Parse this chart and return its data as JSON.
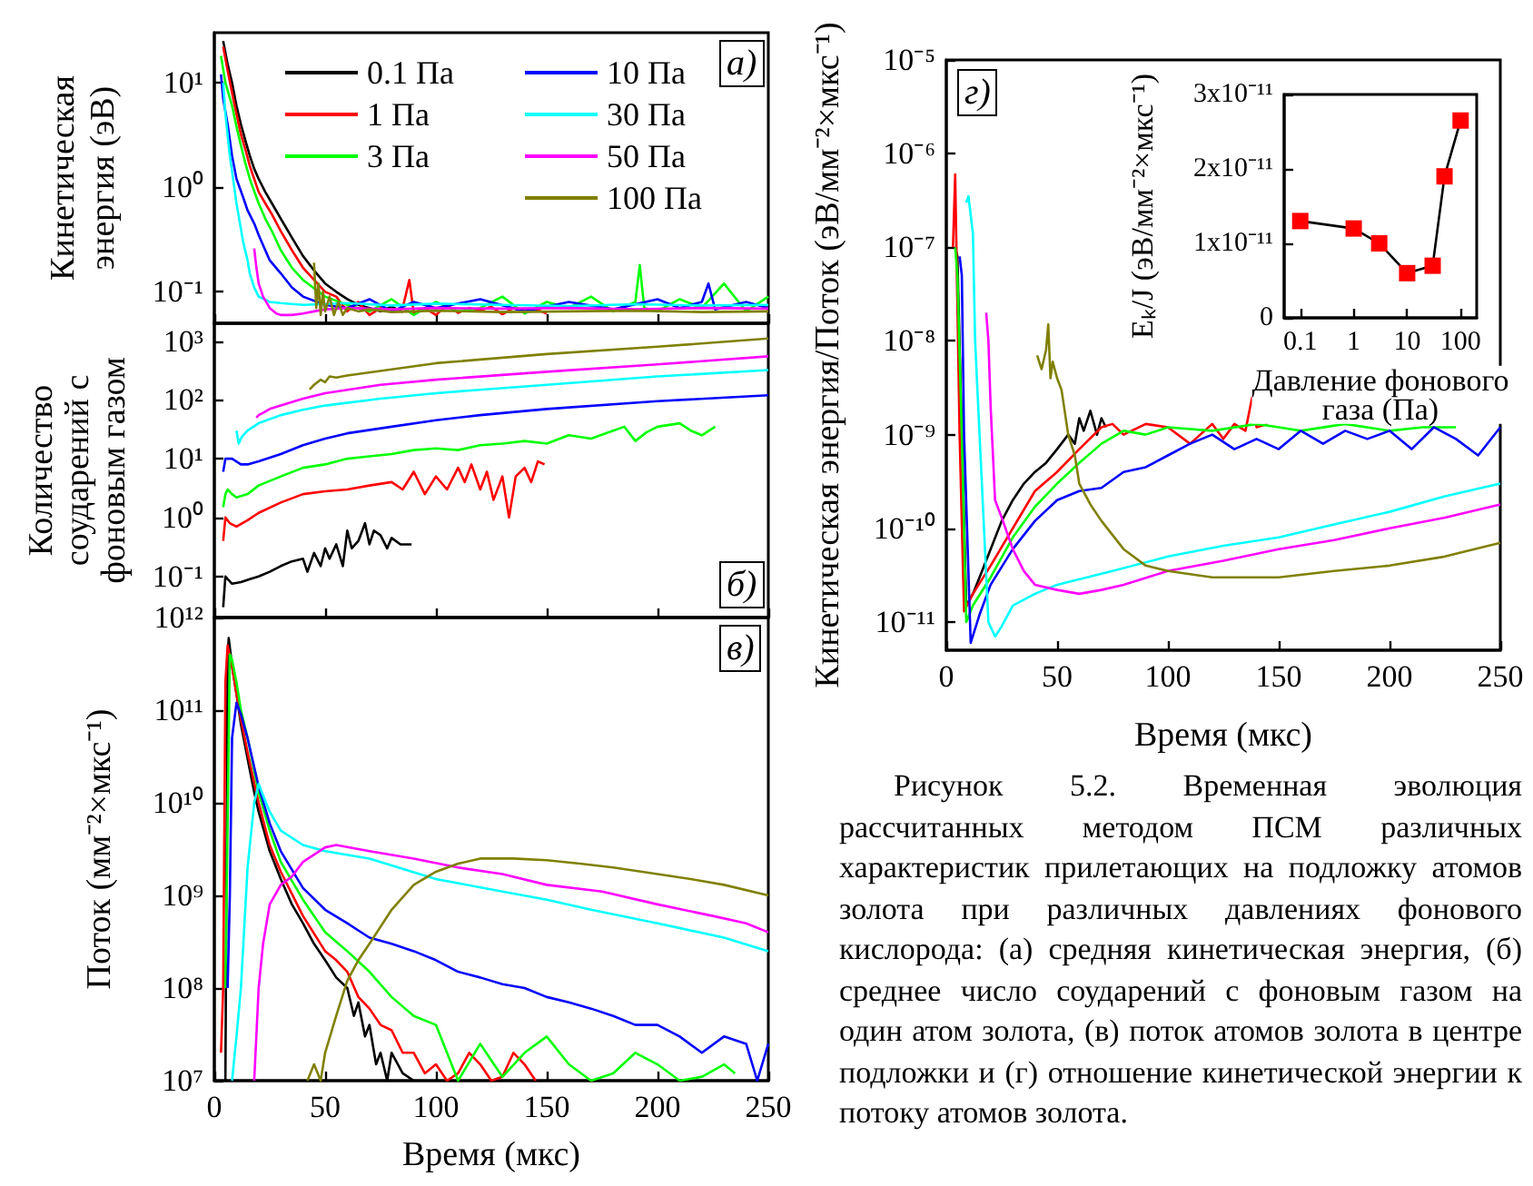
{
  "chart_data": [
    {
      "type": "line",
      "ylabel": "Кинетическая энергия (эВ)",
      "log": true,
      "tick_labels": "y",
      "legend": "top right",
      "xlim": [
        0,
        250
      ],
      "xticks": [
        0,
        50,
        100,
        150,
        200,
        250
      ],
      "ylim": [
        0.05,
        30
      ],
      "yticks": [
        {
          "value": 0.1,
          "label": "10⁻¹"
        },
        {
          "value": 1,
          "label": "10⁰"
        },
        {
          "value": 10,
          "label": "10¹"
        }
      ],
      "annotations": [
        "а)"
      ],
      "series": [
        {
          "name": "0.1 Па",
          "color": "#000000",
          "x": [
            4,
            6,
            8,
            10,
            12,
            14,
            16,
            18,
            20,
            23,
            26,
            30,
            35,
            40,
            45,
            50,
            55,
            60,
            65,
            70,
            75,
            80,
            85
          ],
          "values": [
            25,
            15,
            10,
            6,
            4,
            2.8,
            2,
            1.5,
            1.2,
            0.9,
            0.7,
            0.5,
            0.33,
            0.22,
            0.16,
            0.12,
            0.1,
            0.085,
            0.075,
            0.07,
            0.065,
            0.072,
            0.064
          ]
        },
        {
          "name": "1 Па",
          "color": "#ff0000",
          "x": [
            4,
            6,
            8,
            10,
            12,
            14,
            16,
            18,
            20,
            23,
            26,
            30,
            35,
            40,
            45,
            50,
            55,
            60,
            65,
            70,
            75,
            80,
            85,
            88,
            90,
            95,
            100,
            105,
            110,
            115,
            120,
            125,
            130,
            135,
            140,
            145,
            150
          ],
          "values": [
            22,
            13,
            8,
            5,
            3.2,
            2.3,
            1.6,
            1.2,
            0.9,
            0.7,
            0.55,
            0.38,
            0.25,
            0.17,
            0.13,
            0.1,
            0.09,
            0.065,
            0.08,
            0.06,
            0.07,
            0.065,
            0.07,
            0.13,
            0.062,
            0.07,
            0.06,
            0.075,
            0.063,
            0.07,
            0.066,
            0.072,
            0.061,
            0.07,
            0.065,
            0.068,
            0.062
          ]
        },
        {
          "name": "3 Па",
          "color": "#00ff00",
          "x": [
            3,
            5,
            8,
            10,
            12,
            14,
            16,
            20,
            23,
            26,
            30,
            35,
            40,
            50,
            60,
            70,
            80,
            90,
            100,
            110,
            120,
            130,
            140,
            150,
            160,
            170,
            180,
            190,
            192,
            194,
            200,
            210,
            220,
            230,
            240,
            250
          ],
          "values": [
            18,
            10,
            6,
            3.8,
            2.5,
            1.7,
            1.2,
            0.7,
            0.5,
            0.38,
            0.25,
            0.17,
            0.13,
            0.09,
            0.075,
            0.065,
            0.085,
            0.06,
            0.08,
            0.065,
            0.07,
            0.09,
            0.062,
            0.08,
            0.07,
            0.09,
            0.065,
            0.08,
            0.18,
            0.07,
            0.065,
            0.085,
            0.07,
            0.12,
            0.065,
            0.09
          ]
        },
        {
          "name": "10 Па",
          "color": "#0000ff",
          "x": [
            3,
            4,
            6,
            8,
            10,
            13,
            15,
            18,
            20,
            25,
            30,
            35,
            40,
            50,
            60,
            70,
            80,
            90,
            100,
            120,
            140,
            160,
            180,
            200,
            210,
            220,
            223,
            226,
            240,
            250
          ],
          "values": [
            12,
            7,
            4,
            2,
            1.2,
            0.8,
            0.6,
            0.45,
            0.35,
            0.2,
            0.15,
            0.11,
            0.09,
            0.075,
            0.07,
            0.085,
            0.065,
            0.08,
            0.07,
            0.085,
            0.065,
            0.08,
            0.068,
            0.085,
            0.07,
            0.08,
            0.12,
            0.068,
            0.08,
            0.07
          ]
        },
        {
          "name": "30 Па",
          "color": "#00ffff",
          "x": [
            4,
            5,
            7,
            9,
            10,
            12,
            13,
            15,
            16,
            18,
            20,
            25,
            30,
            40,
            60,
            80,
            100,
            130,
            160,
            190,
            220,
            250
          ],
          "values": [
            10,
            5,
            2,
            1,
            0.7,
            0.4,
            0.3,
            0.2,
            0.15,
            0.11,
            0.09,
            0.08,
            0.078,
            0.075,
            0.078,
            0.074,
            0.077,
            0.075,
            0.073,
            0.076,
            0.074,
            0.075
          ]
        },
        {
          "name": "50 Па",
          "color": "#ff00ff",
          "x": [
            18,
            19,
            20,
            22,
            25,
            28,
            30,
            35,
            40,
            45,
            50,
            60,
            80,
            100,
            130,
            160,
            190,
            220,
            250
          ],
          "values": [
            0.26,
            0.17,
            0.12,
            0.09,
            0.07,
            0.062,
            0.06,
            0.06,
            0.062,
            0.065,
            0.068,
            0.07,
            0.068,
            0.07,
            0.069,
            0.07,
            0.068,
            0.07,
            0.069
          ]
        },
        {
          "name": "100 Па",
          "color": "#808000",
          "x": [
            45,
            46,
            47,
            48,
            49,
            50,
            52,
            54,
            56,
            58,
            60,
            65,
            70,
            80,
            100,
            130,
            160,
            190,
            220,
            250
          ],
          "values": [
            0.19,
            0.07,
            0.12,
            0.06,
            0.1,
            0.065,
            0.09,
            0.06,
            0.08,
            0.06,
            0.07,
            0.065,
            0.068,
            0.064,
            0.066,
            0.064,
            0.065,
            0.066,
            0.064,
            0.065
          ]
        }
      ]
    },
    {
      "type": "line",
      "ylabel": "Количество соударений с фоновым газом",
      "log": true,
      "tick_labels": "y",
      "xlim": [
        0,
        250
      ],
      "xticks": [
        0,
        50,
        100,
        150,
        200,
        250
      ],
      "ylim": [
        0.02,
        2000
      ],
      "yticks": [
        {
          "value": 0.1,
          "label": "10⁻¹"
        },
        {
          "value": 1,
          "label": "10⁰"
        },
        {
          "value": 10,
          "label": "10¹"
        },
        {
          "value": 100,
          "label": "10²"
        },
        {
          "value": 1000,
          "label": "10³"
        }
      ],
      "annotations": [
        "б)"
      ],
      "series": [
        {
          "color": "#000000",
          "x": [
            4,
            5,
            6,
            8,
            12,
            16,
            20,
            25,
            30,
            35,
            40,
            42,
            45,
            48,
            50,
            52,
            55,
            58,
            60,
            62,
            65,
            68,
            70,
            72,
            75,
            78,
            80,
            84,
            89
          ],
          "values": [
            0.03,
            0.1,
            0.09,
            0.075,
            0.08,
            0.09,
            0.1,
            0.12,
            0.15,
            0.18,
            0.2,
            0.12,
            0.25,
            0.15,
            0.3,
            0.2,
            0.35,
            0.15,
            0.6,
            0.3,
            0.4,
            0.8,
            0.35,
            0.6,
            0.5,
            0.3,
            0.45,
            0.35,
            0.35
          ]
        },
        {
          "color": "#ff0000",
          "x": [
            4,
            5,
            7,
            10,
            15,
            20,
            30,
            40,
            50,
            60,
            70,
            80,
            85,
            90,
            95,
            100,
            105,
            110,
            113,
            116,
            120,
            123,
            126,
            130,
            133,
            136,
            140,
            143,
            146,
            149
          ],
          "values": [
            0.4,
            1,
            0.8,
            0.7,
            0.9,
            1.2,
            1.8,
            2.5,
            2.8,
            3,
            3.5,
            4,
            3,
            6,
            2.5,
            5,
            3,
            7,
            4,
            8,
            3,
            6,
            2,
            5,
            1,
            5,
            7,
            4,
            9,
            8
          ]
        },
        {
          "color": "#00ff00",
          "x": [
            4,
            5,
            6,
            8,
            10,
            15,
            20,
            30,
            40,
            50,
            60,
            70,
            80,
            90,
            100,
            110,
            120,
            130,
            140,
            150,
            160,
            170,
            180,
            185,
            190,
            195,
            200,
            210,
            215,
            220,
            226
          ],
          "values": [
            1.5,
            2.5,
            3,
            2.5,
            2.2,
            2.5,
            3.5,
            5,
            7,
            8,
            10,
            11,
            12,
            14,
            15,
            14,
            17,
            18,
            20,
            18,
            25,
            22,
            30,
            35,
            20,
            28,
            35,
            40,
            30,
            25,
            35
          ]
        },
        {
          "color": "#0000ff",
          "x": [
            4,
            5,
            8,
            12,
            15,
            20,
            30,
            40,
            50,
            60,
            80,
            100,
            120,
            150,
            200,
            250
          ],
          "values": [
            6,
            10,
            10,
            8,
            8,
            9,
            12,
            17,
            22,
            27,
            35,
            45,
            55,
            70,
            95,
            120
          ]
        },
        {
          "color": "#00ffff",
          "x": [
            10,
            11,
            12,
            13,
            15,
            20,
            30,
            40,
            50,
            75,
            100,
            150,
            200,
            250
          ],
          "values": [
            30,
            18,
            22,
            25,
            30,
            40,
            55,
            68,
            80,
            105,
            130,
            180,
            250,
            320
          ]
        },
        {
          "color": "#ff00ff",
          "x": [
            19,
            20,
            22,
            25,
            30,
            40,
            50,
            75,
            100,
            150,
            200,
            250
          ],
          "values": [
            50,
            55,
            60,
            70,
            80,
            105,
            130,
            180,
            220,
            300,
            400,
            550
          ]
        },
        {
          "color": "#808000",
          "x": [
            43,
            45,
            48,
            50,
            52,
            55,
            60,
            80,
            100,
            150,
            200,
            250
          ],
          "values": [
            150,
            180,
            220,
            200,
            250,
            240,
            260,
            330,
            420,
            600,
            800,
            1100
          ]
        }
      ]
    },
    {
      "type": "line",
      "xlabel": "Время (мкс)",
      "ylabel": "Поток (мм⁻²×мкс⁻¹)",
      "log": true,
      "xlim": [
        0,
        250
      ],
      "xticks": [
        0,
        50,
        100,
        150,
        200,
        250
      ],
      "ylim": [
        10000000.0,
        1000000000000.0
      ],
      "yticks": [
        {
          "value": 10000000.0,
          "label": "10⁷"
        },
        {
          "value": 100000000.0,
          "label": "10⁸"
        },
        {
          "value": 1000000000.0,
          "label": "10⁹"
        },
        {
          "value": 10000000000.0,
          "label": "10¹⁰"
        },
        {
          "value": 100000000000.0,
          "label": "10¹¹"
        },
        {
          "value": 1000000000000.0,
          "label": "10¹²"
        }
      ],
      "annotations": [
        "в)"
      ],
      "series": [
        {
          "color": "#000000",
          "x": [
            5,
            6,
            6.5,
            8,
            10,
            12,
            15,
            18,
            20,
            25,
            30,
            35,
            40,
            45,
            50,
            55,
            60,
            63,
            65,
            68,
            70,
            73,
            75,
            78,
            80,
            85,
            90
          ],
          "values": [
            10000000.0,
            400000000000.0,
            600000000000.0,
            300000000000.0,
            150000000000.0,
            70000000000.0,
            30000000000.0,
            13000000000.0,
            8000000000.0,
            3000000000.0,
            1500000000.0,
            800000000.0,
            500000000.0,
            300000000.0,
            200000000.0,
            130000000.0,
            100000000.0,
            50000000.0,
            70000000.0,
            30000000.0,
            40000000.0,
            15000000.0,
            20000000.0,
            10000000.0,
            20000000.0,
            12000000.0,
            10000000.0
          ]
        },
        {
          "color": "#ff0000",
          "x": [
            3,
            4,
            5,
            6,
            8,
            10,
            12,
            15,
            20,
            25,
            30,
            40,
            50,
            55,
            60,
            65,
            70,
            75,
            80,
            85,
            90,
            95,
            100,
            105,
            110,
            115,
            120,
            125,
            130,
            135,
            140,
            145
          ],
          "values": [
            20000000.0,
            100000000.0,
            200000000000.0,
            500000000000.0,
            300000000000.0,
            150000000000.0,
            80000000000.0,
            35000000000.0,
            10000000000.0,
            3500000000.0,
            1800000000.0,
            600000000.0,
            250000000.0,
            200000000.0,
            150000000.0,
            80000000.0,
            60000000.0,
            40000000.0,
            35000000.0,
            20000000.0,
            20000000.0,
            12000000.0,
            15000000.0,
            10000000.0,
            12000000.0,
            20000000.0,
            15000000.0,
            10000000.0,
            11000000.0,
            20000000.0,
            15000000.0,
            10000000.0
          ]
        },
        {
          "color": "#00ff00",
          "x": [
            5,
            7,
            8,
            10,
            12,
            15,
            20,
            25,
            30,
            40,
            50,
            60,
            70,
            80,
            90,
            100,
            110,
            120,
            130,
            140,
            150,
            160,
            170,
            180,
            190,
            200,
            210,
            220,
            230,
            235
          ],
          "values": [
            100000000.0,
            400000000000.0,
            350000000000.0,
            200000000000.0,
            100000000000.0,
            50000000000.0,
            13000000000.0,
            5000000000.0,
            2300000000.0,
            900000000.0,
            400000000.0,
            250000000.0,
            150000000.0,
            80000000.0,
            50000000.0,
            40000000.0,
            10000000.0,
            25000000.0,
            11000000.0,
            20000000.0,
            30000000.0,
            15000000.0,
            10000000.0,
            12000000.0,
            20000000.0,
            15000000.0,
            10000000.0,
            11000000.0,
            15000000.0,
            12000000.0
          ]
        },
        {
          "color": "#0000ff",
          "x": [
            6,
            7,
            8,
            10,
            12,
            15,
            20,
            25,
            30,
            40,
            50,
            60,
            70,
            80,
            90,
            100,
            110,
            120,
            130,
            140,
            150,
            160,
            170,
            180,
            190,
            200,
            210,
            220,
            230,
            240,
            245,
            250
          ],
          "values": [
            100000000.0,
            1000000000.0,
            50000000000.0,
            120000000000.0,
            90000000000.0,
            50000000000.0,
            15000000000.0,
            6000000000.0,
            3000000000.0,
            1200000000.0,
            700000000.0,
            500000000.0,
            350000000.0,
            300000000.0,
            250000000.0,
            200000000.0,
            150000000.0,
            130000000.0,
            110000000.0,
            100000000.0,
            80000000.0,
            70000000.0,
            60000000.0,
            50000000.0,
            40000000.0,
            40000000.0,
            30000000.0,
            20000000.0,
            30000000.0,
            25000000.0,
            10000000.0,
            25000000.0
          ]
        },
        {
          "color": "#00ffff",
          "x": [
            8,
            10,
            12,
            15,
            18,
            20,
            22,
            25,
            30,
            40,
            50,
            70,
            100,
            130,
            150,
            170,
            200,
            230,
            250
          ],
          "values": [
            10000000.0,
            30000000.0,
            100000000.0,
            2000000000.0,
            10000000000.0,
            16000000000.0,
            12000000000.0,
            8000000000.0,
            5000000000.0,
            3500000000.0,
            3000000000.0,
            2500000000.0,
            1500000000.0,
            1100000000.0,
            900000000.0,
            700000000.0,
            500000000.0,
            350000000.0,
            250000000.0
          ]
        },
        {
          "color": "#ff00ff",
          "x": [
            18,
            20,
            22,
            25,
            30,
            35,
            40,
            50,
            55,
            70,
            90,
            110,
            130,
            150,
            175,
            200,
            225,
            240,
            250
          ],
          "values": [
            10000000.0,
            100000000.0,
            300000000.0,
            800000000.0,
            1300000000.0,
            1600000000.0,
            2300000000.0,
            3300000000.0,
            3500000000.0,
            3000000000.0,
            2500000000.0,
            2000000000.0,
            1700000000.0,
            1300000000.0,
            1100000000.0,
            800000000.0,
            600000000.0,
            500000000.0,
            400000000.0
          ]
        },
        {
          "color": "#808000",
          "x": [
            42,
            45,
            48,
            50,
            55,
            60,
            65,
            70,
            80,
            90,
            100,
            110,
            120,
            135,
            150,
            165,
            180,
            200,
            215,
            230,
            250
          ],
          "values": [
            10000000.0,
            15000000.0,
            10000000.0,
            20000000.0,
            50000000.0,
            120000000.0,
            200000000.0,
            300000000.0,
            700000000.0,
            1300000000.0,
            1800000000.0,
            2200000000.0,
            2500000000.0,
            2500000000.0,
            2400000000.0,
            2200000000.0,
            2000000000.0,
            1700000000.0,
            1500000000.0,
            1300000000.0,
            1000000000.0
          ]
        }
      ]
    },
    {
      "type": "line",
      "xlabel": "Время (мкс)",
      "ylabel": "Кинетическая энергия/Поток (эВ/мм⁻²×мкс⁻¹)",
      "log": true,
      "xlim": [
        0,
        250
      ],
      "xticks": [
        0,
        50,
        100,
        150,
        200,
        250
      ],
      "ylim": [
        5e-12,
        1e-05
      ],
      "yticks": [
        {
          "value": 1e-11,
          "label": "10⁻¹¹"
        },
        {
          "value": 1e-10,
          "label": "10⁻¹⁰"
        },
        {
          "value": 1e-09,
          "label": "10⁻⁹"
        },
        {
          "value": 1e-08,
          "label": "10⁻⁸"
        },
        {
          "value": 1e-07,
          "label": "10⁻⁷"
        },
        {
          "value": 1e-06,
          "label": "10⁻⁶"
        },
        {
          "value": 1e-05,
          "label": "10⁻⁵"
        }
      ],
      "annotations": [
        "г)",
        "Рисунок 5.2. Временная эволюция рассчитанных методом ПСМ различных характеристик прилетающих на подложку атомов золота при различных давлениях фонового кислорода: (а) средняя кинетическая энергия, (б) среднее число соударений с фоновым газом на один атом золота, (в) поток атомов золота в центре подложки и (г) отношение кинетической энергии к потоку атомов золота."
      ],
      "series": [
        {
          "color": "#000000",
          "x": [
            4,
            5,
            7,
            9,
            12,
            15,
            20,
            25,
            30,
            35,
            40,
            45,
            50,
            55,
            58,
            60,
            62,
            65,
            68,
            70,
            72
          ],
          "values": [
            1e-07,
            8e-08,
            1e-09,
            1.5e-11,
            2e-11,
            3e-11,
            6e-11,
            1.2e-10,
            2e-10,
            3e-10,
            4e-10,
            5e-10,
            7e-10,
            1e-09,
            8e-10,
            1.5e-09,
            1.1e-09,
            1.8e-09,
            1e-09,
            1.5e-09,
            1.2e-09
          ]
        },
        {
          "color": "#ff0000",
          "x": [
            3,
            4,
            6,
            8,
            12,
            20,
            30,
            40,
            50,
            60,
            70,
            75,
            80,
            90,
            100,
            110,
            120,
            125,
            130,
            135,
            138,
            140,
            145
          ],
          "values": [
            1e-07,
            6e-07,
            1e-09,
            1.3e-11,
            2e-11,
            4e-11,
            1e-10,
            2.5e-10,
            4e-10,
            7e-10,
            1.2e-09,
            1.3e-09,
            1e-09,
            1.3e-09,
            1.2e-09,
            8e-10,
            1.3e-09,
            9e-10,
            1.3e-09,
            1.1e-09,
            2.5e-09,
            1.2e-09,
            1.3e-09
          ]
        },
        {
          "color": "#00ff00",
          "x": [
            4,
            5,
            7,
            9,
            12,
            20,
            30,
            40,
            50,
            60,
            70,
            80,
            90,
            100,
            120,
            140,
            150,
            160,
            180,
            200,
            215,
            230
          ],
          "values": [
            1e-07,
            5e-08,
            1e-09,
            1e-11,
            1.5e-11,
            3e-11,
            8e-11,
            1.7e-10,
            3e-10,
            5e-10,
            8e-10,
            1.1e-09,
            1e-09,
            1.2e-09,
            1.1e-09,
            1.3e-09,
            1.2e-09,
            1.1e-09,
            1.3e-09,
            1.1e-09,
            1.2e-09,
            1.2e-09
          ]
        },
        {
          "color": "#0000ff",
          "x": [
            6,
            7,
            8,
            11,
            15,
            20,
            30,
            40,
            50,
            60,
            70,
            80,
            90,
            100,
            110,
            120,
            130,
            140,
            150,
            160,
            170,
            180,
            190,
            200,
            210,
            220,
            230,
            240,
            250
          ],
          "values": [
            8e-08,
            5e-08,
            1e-09,
            6e-12,
            1.2e-11,
            2.5e-11,
            6e-11,
            1.2e-10,
            2e-10,
            2.5e-10,
            2.7e-10,
            4e-10,
            4.5e-10,
            6e-10,
            8e-10,
            1e-09,
            7e-10,
            9e-10,
            7e-10,
            1.1e-09,
            8e-10,
            1.1e-09,
            9e-10,
            1.1e-09,
            7e-10,
            1.2e-09,
            9e-10,
            6e-10,
            1.2e-09
          ]
        },
        {
          "color": "#00ffff",
          "x": [
            9,
            10,
            12,
            13,
            15,
            17,
            19,
            22,
            25,
            30,
            40,
            50,
            75,
            100,
            125,
            150,
            175,
            200,
            225,
            250
          ],
          "values": [
            3e-07,
            3.5e-07,
            1.4e-07,
            1e-08,
            1e-09,
            1e-10,
            1e-11,
            7e-12,
            9e-12,
            1.5e-11,
            2e-11,
            2.5e-11,
            3.5e-11,
            5e-11,
            6.5e-11,
            8e-11,
            1.1e-10,
            1.5e-10,
            2.2e-10,
            3e-10
          ]
        },
        {
          "color": "#ff00ff",
          "x": [
            18,
            19,
            20,
            22,
            25,
            30,
            35,
            40,
            50,
            60,
            70,
            80,
            100,
            125,
            150,
            175,
            200,
            225,
            250
          ],
          "values": [
            2e-08,
            1e-08,
            2e-09,
            2e-10,
            1.3e-10,
            6e-11,
            3.5e-11,
            2.5e-11,
            2.2e-11,
            2e-11,
            2.2e-11,
            2.5e-11,
            3.5e-11,
            4.5e-11,
            6e-11,
            7.5e-11,
            1e-10,
            1.3e-10,
            1.8e-10
          ]
        },
        {
          "color": "#808000",
          "x": [
            41,
            43,
            45,
            46,
            47,
            48,
            50,
            52,
            55,
            58,
            60,
            65,
            70,
            80,
            90,
            100,
            120,
            150,
            175,
            200,
            225,
            250
          ],
          "values": [
            7e-09,
            5e-09,
            8e-09,
            1.5e-08,
            4e-09,
            6e-09,
            4e-09,
            3e-09,
            1e-09,
            6e-10,
            3e-10,
            1.8e-10,
            1.2e-10,
            6e-11,
            4e-11,
            3.5e-11,
            3e-11,
            3e-11,
            3.5e-11,
            4e-11,
            5e-11,
            7e-11
          ]
        }
      ]
    },
    {
      "type": "line",
      "xlabel": "Давление фонового газа (Па)",
      "ylabel": "Eₖ/J (эВ/мм⁻²×мкс⁻¹)",
      "log": "x",
      "marker": "square",
      "xlim": [
        0.05,
        200
      ],
      "xticks": [
        0.1,
        1,
        10,
        100
      ],
      "ylim": [
        0,
        3e-11
      ],
      "yticks": [
        0,
        {
          "value": 1e-11,
          "label": "1x10⁻¹¹"
        },
        {
          "value": 2e-11,
          "label": "2x10⁻¹¹"
        },
        {
          "value": 3e-11,
          "label": "3x10⁻¹¹"
        }
      ],
      "series": [
        {
          "color": "#ff0000",
          "x": [
            0.1,
            1,
            3,
            10,
            30,
            50,
            100
          ],
          "values": [
            1.3e-11,
            1.2e-11,
            1e-11,
            6e-12,
            7e-12,
            1.9e-11,
            2.65e-11
          ]
        }
      ]
    }
  ]
}
